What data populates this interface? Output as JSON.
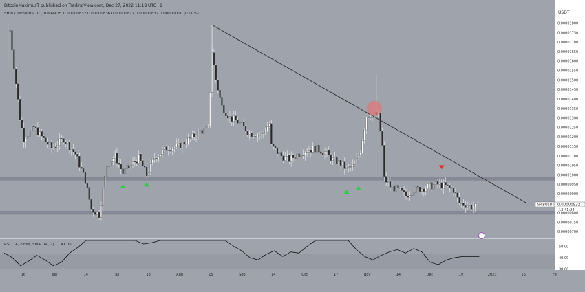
{
  "header": {
    "published_text": "BitcoinMaximusT published on TradingView.com, Dec 27, 2022 11:18 UTC+1",
    "symbol_line": "SHIB / TetherUS, 1D, BINANCE",
    "ohlc": "0.00000832  0.00000836  0.00000827  0.00000832  0.00000000 (0.00%)"
  },
  "price_axis": {
    "currency": "USDT",
    "ticks": [
      "0.00001800",
      "0.00001750",
      "0.00001700",
      "0.00001650",
      "0.00001600",
      "0.00001550",
      "0.00001500",
      "0.00001450",
      "0.00001400",
      "0.00001350",
      "0.00001300",
      "0.00001250",
      "0.00001200",
      "0.00001150",
      "0.00001100",
      "0.00001050",
      "0.00001000",
      "0.00000950",
      "0.00000900",
      "0.00000850",
      "0.00000800",
      "0.00000750",
      "0.00000700"
    ]
  },
  "time_axis": {
    "labels": [
      "16",
      "Jun",
      "14",
      "Jul",
      "18",
      "Aug",
      "15",
      "Sep",
      "14",
      "Oct",
      "17",
      "Nov",
      "14",
      "Dec",
      "19",
      "2023",
      "16",
      "Fe"
    ]
  },
  "price_tag": {
    "symbol": "SHIBUSDT",
    "price": "0.00000832",
    "countdown": "13:41:24"
  },
  "rsi": {
    "label": "RSI (14, close, SMA, 14, 2)",
    "value": "41.05",
    "ticks": [
      "50.00",
      "40.00",
      "30.00"
    ]
  },
  "colors": {
    "background": "#9fa3ab",
    "candle": "#ffffff",
    "trendline": "#2a2a2a",
    "support_zone": "#818590",
    "arrow_up": "#2ecc40",
    "arrow_down": "#e0352b",
    "circle": "#e0787a"
  },
  "chart_data": {
    "type": "candlestick",
    "y_range": [
      6.9e-06,
      1.82e-05
    ],
    "x_range": [
      "2022-05-01",
      "2023-02-01"
    ],
    "closes": [
      {
        "date": "2022-05-04",
        "close": 1.76e-05
      },
      {
        "date": "2022-05-09",
        "close": 1.3e-05
      },
      {
        "date": "2022-05-11",
        "close": 1.19e-05
      },
      {
        "date": "2022-05-16",
        "close": 1.25e-05
      },
      {
        "date": "2022-05-20",
        "close": 1.2e-05
      },
      {
        "date": "2022-05-25",
        "close": 1.14e-05
      },
      {
        "date": "2022-05-31",
        "close": 1.19e-05
      },
      {
        "date": "2022-06-06",
        "close": 1.11e-05
      },
      {
        "date": "2022-06-11",
        "close": 9.7e-06
      },
      {
        "date": "2022-06-14",
        "close": 8.2e-06
      },
      {
        "date": "2022-06-18",
        "close": 7.9e-06
      },
      {
        "date": "2022-06-22",
        "close": 1.05e-05
      },
      {
        "date": "2022-06-26",
        "close": 1.1e-05
      },
      {
        "date": "2022-06-30",
        "close": 1.01e-05
      },
      {
        "date": "2022-07-04",
        "close": 1.05e-05
      },
      {
        "date": "2022-07-08",
        "close": 1.09e-05
      },
      {
        "date": "2022-07-12",
        "close": 1e-05
      },
      {
        "date": "2022-07-16",
        "close": 1.09e-05
      },
      {
        "date": "2022-07-22",
        "close": 1.14e-05
      },
      {
        "date": "2022-07-28",
        "close": 1.15e-05
      },
      {
        "date": "2022-08-03",
        "close": 1.19e-05
      },
      {
        "date": "2022-08-08",
        "close": 1.23e-05
      },
      {
        "date": "2022-08-12",
        "close": 1.24e-05
      },
      {
        "date": "2022-08-14",
        "close": 1.65e-05
      },
      {
        "date": "2022-08-16",
        "close": 1.5e-05
      },
      {
        "date": "2022-08-19",
        "close": 1.36e-05
      },
      {
        "date": "2022-08-23",
        "close": 1.3e-05
      },
      {
        "date": "2022-08-27",
        "close": 1.28e-05
      },
      {
        "date": "2022-09-02",
        "close": 1.22e-05
      },
      {
        "date": "2022-09-08",
        "close": 1.21e-05
      },
      {
        "date": "2022-09-12",
        "close": 1.27e-05
      },
      {
        "date": "2022-09-13",
        "close": 1.15e-05
      },
      {
        "date": "2022-09-18",
        "close": 1.1e-05
      },
      {
        "date": "2022-09-22",
        "close": 1.08e-05
      },
      {
        "date": "2022-09-28",
        "close": 1.12e-05
      },
      {
        "date": "2022-10-05",
        "close": 1.14e-05
      },
      {
        "date": "2022-10-10",
        "close": 1.12e-05
      },
      {
        "date": "2022-10-14",
        "close": 1.08e-05
      },
      {
        "date": "2022-10-18",
        "close": 1.06e-05
      },
      {
        "date": "2022-10-21",
        "close": 1.03e-05
      },
      {
        "date": "2022-10-25",
        "close": 1.05e-05
      },
      {
        "date": "2022-10-28",
        "close": 1.13e-05
      },
      {
        "date": "2022-10-31",
        "close": 1.31e-05
      },
      {
        "date": "2022-11-03",
        "close": 1.32e-05
      },
      {
        "date": "2022-11-06",
        "close": 1.31e-05
      },
      {
        "date": "2022-11-08",
        "close": 1.15e-05
      },
      {
        "date": "2022-11-09",
        "close": 9.8e-06
      },
      {
        "date": "2022-11-12",
        "close": 9.4e-06
      },
      {
        "date": "2022-11-16",
        "close": 9.2e-06
      },
      {
        "date": "2022-11-20",
        "close": 8.9e-06
      },
      {
        "date": "2022-11-24",
        "close": 9.2e-06
      },
      {
        "date": "2022-11-28",
        "close": 9.3e-06
      },
      {
        "date": "2022-12-02",
        "close": 9.4e-06
      },
      {
        "date": "2022-12-06",
        "close": 9.5e-06
      },
      {
        "date": "2022-12-10",
        "close": 9.4e-06
      },
      {
        "date": "2022-12-14",
        "close": 9.2e-06
      },
      {
        "date": "2022-12-17",
        "close": 8.5e-06
      },
      {
        "date": "2022-12-21",
        "close": 8.4e-06
      },
      {
        "date": "2022-12-24",
        "close": 8.3e-06
      },
      {
        "date": "2022-12-27",
        "close": 8.32e-06
      }
    ],
    "trendline": [
      {
        "date": "2022-08-14",
        "price": 1.79e-05
      },
      {
        "date": "2023-01-20",
        "price": 8.5e-06
      }
    ],
    "zones": [
      {
        "low": 9.7e-06,
        "high": 9.9e-06
      },
      {
        "low": 7.9e-06,
        "high": 8.1e-06
      }
    ],
    "markers": [
      {
        "type": "arrow-up",
        "date": "2022-06-30",
        "price": 9.4e-06
      },
      {
        "type": "arrow-up",
        "date": "2022-07-12",
        "price": 9.5e-06
      },
      {
        "type": "arrow-up",
        "date": "2022-10-21",
        "price": 9.1e-06
      },
      {
        "type": "arrow-up",
        "date": "2022-10-27",
        "price": 9.3e-06
      },
      {
        "type": "arrow-down",
        "date": "2022-12-08",
        "price": 1.04e-05
      }
    ],
    "highlight_circle": {
      "date": "2022-11-04",
      "price": 1.35e-05
    },
    "rsi_series": [
      44,
      40,
      33,
      37,
      42,
      38,
      33,
      36,
      44,
      49,
      55,
      55,
      55,
      55,
      55,
      55,
      55,
      52,
      53,
      55,
      55,
      55,
      55,
      55,
      55,
      55,
      55,
      55,
      50,
      46,
      40,
      38,
      43,
      46,
      41,
      45,
      44,
      50,
      55,
      55,
      55,
      55,
      55,
      47,
      41,
      38,
      42,
      45,
      47,
      44,
      48,
      45,
      36,
      34,
      38,
      40,
      41,
      41,
      41
    ],
    "rsi_range": [
      28,
      55
    ]
  }
}
